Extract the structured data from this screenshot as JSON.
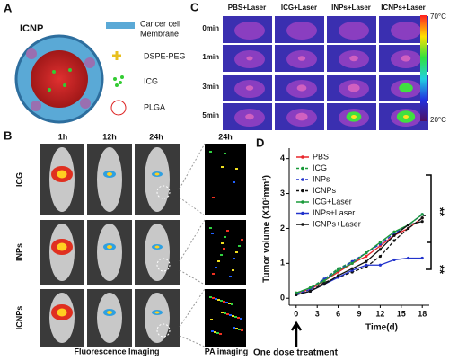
{
  "panel_a": {
    "label": "A",
    "title": "ICNP",
    "membrane": [
      "Cancer cell",
      "Membrane"
    ],
    "peg": "DSPE-PEG",
    "icg": "ICG",
    "plga": "PLGA"
  },
  "panel_b": {
    "label": "B",
    "columns": [
      "1h",
      "12h",
      "24h",
      "24h"
    ],
    "rows": [
      "ICG",
      "INPs",
      "ICNPs"
    ],
    "footer": [
      "Fluorescence Imaging",
      "PA imaging"
    ]
  },
  "panel_c": {
    "label": "C",
    "columns": [
      "PBS+Laser",
      "ICG+Laser",
      "INPs+Laser",
      "ICNPs+Laser"
    ],
    "rows": [
      "0min",
      "1min",
      "3min",
      "5min"
    ],
    "colorbar": [
      "70°C",
      "20°C"
    ]
  },
  "chart_data": {
    "type": "line",
    "label": "D",
    "x_label": "Time(d)",
    "y_label": "Tumor volume (X10³mm³)",
    "annotation": "One dose treatment",
    "significance": [
      "**",
      "**"
    ],
    "x": [
      0,
      2,
      4,
      6,
      8,
      10,
      12,
      14,
      16,
      18
    ],
    "xlim": [
      -1,
      19
    ],
    "xticks": [
      0,
      3,
      6,
      9,
      12,
      15,
      18
    ],
    "ylim": [
      -0.2,
      4.3
    ],
    "yticks": [
      0,
      1,
      2,
      3,
      4
    ],
    "legend": "upper left",
    "series": [
      {
        "name": "PBS",
        "color": "#e8262b",
        "dashed": false,
        "values": [
          0.15,
          0.25,
          0.5,
          0.75,
          1.0,
          1.2,
          1.5,
          1.8,
          2.0,
          2.3
        ]
      },
      {
        "name": "ICG",
        "color": "#1a9a3a",
        "dashed": true,
        "values": [
          0.15,
          0.3,
          0.55,
          0.85,
          1.05,
          1.3,
          1.6,
          1.9,
          2.1,
          2.4
        ]
      },
      {
        "name": "INPs",
        "color": "#2233cc",
        "dashed": true,
        "values": [
          0.12,
          0.25,
          0.55,
          0.8,
          1.05,
          1.3,
          1.55,
          1.85,
          2.1,
          2.4
        ]
      },
      {
        "name": "ICNPs",
        "color": "#111111",
        "dashed": true,
        "values": [
          0.1,
          0.2,
          0.45,
          0.6,
          0.75,
          0.9,
          1.2,
          1.65,
          2.0,
          2.3
        ]
      },
      {
        "name": "ICG+Laser",
        "color": "#1a9a3a",
        "dashed": false,
        "values": [
          0.15,
          0.3,
          0.5,
          0.8,
          1.0,
          1.3,
          1.6,
          1.9,
          2.1,
          2.4
        ]
      },
      {
        "name": "INPs+Laser",
        "color": "#2233cc",
        "dashed": false,
        "values": [
          0.1,
          0.2,
          0.4,
          0.6,
          0.8,
          0.95,
          0.95,
          1.1,
          1.15,
          1.15
        ]
      },
      {
        "name": "ICNPs+Laser",
        "color": "#111111",
        "dashed": false,
        "values": [
          0.1,
          0.2,
          0.4,
          0.65,
          0.85,
          1.05,
          1.4,
          1.8,
          2.1,
          2.2
        ]
      }
    ]
  }
}
